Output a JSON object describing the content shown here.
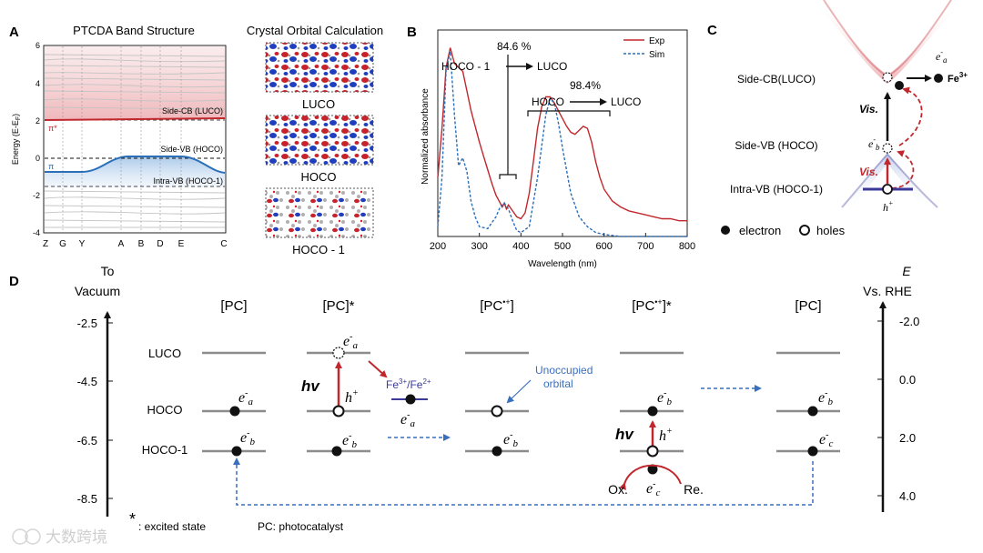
{
  "panel_labels": {
    "a": "A",
    "b": "B",
    "c": "C",
    "d": "D"
  },
  "panel_a": {
    "title": "PTCDA Band Structure",
    "ylabel": "Energy (E-E",
    "ylabel_sub": "F",
    "ylabel_end": ")",
    "y_ticks": [
      "6",
      "4",
      "2",
      "0",
      "-2",
      "-4"
    ],
    "x_ticks": [
      "Z",
      "G",
      "Y",
      "A",
      "B",
      "D",
      "E",
      "C"
    ],
    "label_side_cb": "Side-CB (LUCO)",
    "label_side_vb": "Side-VB (HOCO)",
    "label_intra_vb": "Intra-VB (HOCO-1)",
    "label_pi_star": "π*",
    "label_pi": "π",
    "orbital_title": "Crystal Orbital Calculation",
    "orbital_labels": [
      "LUCO",
      "HOCO",
      "HOCO - 1"
    ],
    "colors": {
      "cb": "#c0282d",
      "vb": "#2a6fb8"
    }
  },
  "panel_b": {
    "xlabel": "Wavelength (nm)",
    "ylabel": "Normalized absorbance",
    "legend": [
      "Exp",
      "Sim"
    ],
    "annot_pct1": "84.6 %",
    "annot_from1": "HOCO - 1",
    "annot_to1": "LUCO",
    "annot_pct2": "98.4%",
    "annot_from2": "HOCO",
    "annot_to2": "LUCO",
    "colors": {
      "exp": "#c0282d",
      "sim": "#2a6fb8"
    }
  },
  "chart_data": {
    "type": "line",
    "title": "",
    "xlabel": "Wavelength (nm)",
    "ylabel": "Normalized absorbance",
    "xlim": [
      200,
      800
    ],
    "ylim": [
      0,
      1.05
    ],
    "x_ticks": [
      "200",
      "300",
      "400",
      "500",
      "600",
      "700",
      "800"
    ],
    "series": [
      {
        "name": "Exp",
        "x": [
          200,
          210,
          220,
          230,
          240,
          250,
          260,
          270,
          280,
          290,
          300,
          310,
          320,
          330,
          340,
          350,
          355,
          360,
          365,
          370,
          380,
          390,
          400,
          410,
          420,
          430,
          440,
          450,
          460,
          470,
          480,
          490,
          500,
          510,
          520,
          530,
          540,
          550,
          560,
          570,
          580,
          590,
          600,
          620,
          640,
          660,
          680,
          700,
          720,
          740,
          760,
          780,
          800
        ],
        "y": [
          0.3,
          0.55,
          0.86,
          0.96,
          0.88,
          0.86,
          0.84,
          0.74,
          0.64,
          0.56,
          0.48,
          0.41,
          0.34,
          0.27,
          0.21,
          0.17,
          0.15,
          0.17,
          0.14,
          0.16,
          0.13,
          0.1,
          0.09,
          0.12,
          0.22,
          0.38,
          0.55,
          0.66,
          0.71,
          0.71,
          0.68,
          0.64,
          0.6,
          0.56,
          0.53,
          0.52,
          0.54,
          0.56,
          0.55,
          0.48,
          0.38,
          0.3,
          0.24,
          0.18,
          0.15,
          0.13,
          0.12,
          0.11,
          0.1,
          0.09,
          0.09,
          0.08,
          0.08
        ]
      },
      {
        "name": "Sim",
        "x": [
          200,
          210,
          220,
          230,
          240,
          250,
          260,
          270,
          280,
          290,
          300,
          320,
          340,
          350,
          360,
          370,
          380,
          390,
          400,
          420,
          440,
          460,
          470,
          480,
          490,
          500,
          520,
          540,
          560,
          580,
          600,
          640,
          680,
          720,
          760,
          800
        ],
        "y": [
          0.05,
          0.3,
          0.85,
          0.94,
          0.62,
          0.36,
          0.4,
          0.33,
          0.18,
          0.1,
          0.05,
          0.04,
          0.1,
          0.15,
          0.17,
          0.14,
          0.08,
          0.03,
          0.02,
          0.05,
          0.3,
          0.62,
          0.7,
          0.68,
          0.58,
          0.45,
          0.22,
          0.1,
          0.05,
          0.02,
          0.01,
          0.0,
          0.0,
          0.0,
          0.0,
          0.0
        ]
      }
    ]
  },
  "panel_c": {
    "label_side_cb": "Side-CB(LUCO)",
    "label_side_vb": "Side-VB (HOCO)",
    "label_intra_vb": "Intra-VB (HOCO-1)",
    "vis1": "Vis.",
    "vis2": "Vis.",
    "e_a": "e",
    "e_a_sub": "a",
    "e_b": "e",
    "e_b_sub": "b",
    "h_plus": "h",
    "fe3": "Fe",
    "fe3_sup": "3+",
    "legend_electron": "electron",
    "legend_holes": "holes"
  },
  "panel_d": {
    "left_axis_title1": "To",
    "left_axis_title2": "Vacuum",
    "left_ticks": [
      "-2.5",
      "-4.5",
      "-6.5",
      "-8.5"
    ],
    "right_axis_title1": "E",
    "right_axis_title2": "Vs. RHE",
    "right_ticks": [
      "-2.0",
      "0.0",
      "2.0",
      "4.0"
    ],
    "level_labels": [
      "LUCO",
      "HOCO",
      "HOCO-1"
    ],
    "states": [
      "[PC]",
      "[PC]*",
      "[PC",
      "[PC",
      "[PC]"
    ],
    "state_radical": "•+",
    "state3_end": "]",
    "state4_end": "]*",
    "hv": "hv",
    "redox": "Fe",
    "redox_sup1": "3+",
    "redox_mid": "/Fe",
    "redox_sup2": "2+",
    "unoccupied1": "Unoccupied",
    "unoccupied2": "orbital",
    "ox": "Ox.",
    "re": "Re.",
    "e": "e",
    "h": "h",
    "sub_a": "a",
    "sub_b": "b",
    "sub_c": "c",
    "excited_note": ": excited state",
    "asterisk": "*",
    "pc_note": "PC: photocatalyst",
    "colors": {
      "red": "#c0282d",
      "blue": "#3a6fc0",
      "purple": "#3b3a98"
    }
  },
  "watermark": "大数跨境"
}
